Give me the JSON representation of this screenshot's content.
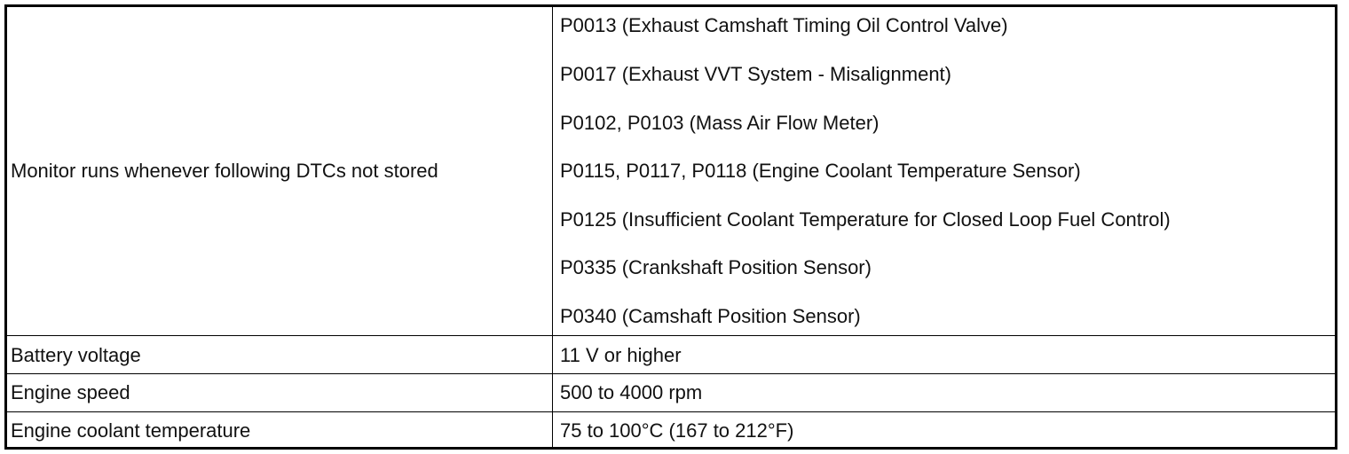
{
  "table": {
    "rows": [
      [
        "Monitor runs whenever following DTCs not stored",
        [
          "P0013 (Exhaust Camshaft Timing Oil Control Valve)",
          "P0017 (Exhaust VVT System - Misalignment)",
          "P0102, P0103 (Mass Air Flow Meter)",
          "P0115, P0117, P0118 (Engine Coolant Temperature Sensor)",
          "P0125 (Insufficient Coolant Temperature for Closed Loop Fuel Control)",
          "P0335 (Crankshaft Position Sensor)",
          "P0340 (Camshaft Position Sensor)"
        ]
      ],
      [
        "Battery voltage",
        "11 V or higher"
      ],
      [
        "Engine speed",
        "500 to 4000 rpm"
      ],
      [
        "Engine coolant temperature",
        "75 to 100°C (167 to 212°F)"
      ]
    ]
  }
}
